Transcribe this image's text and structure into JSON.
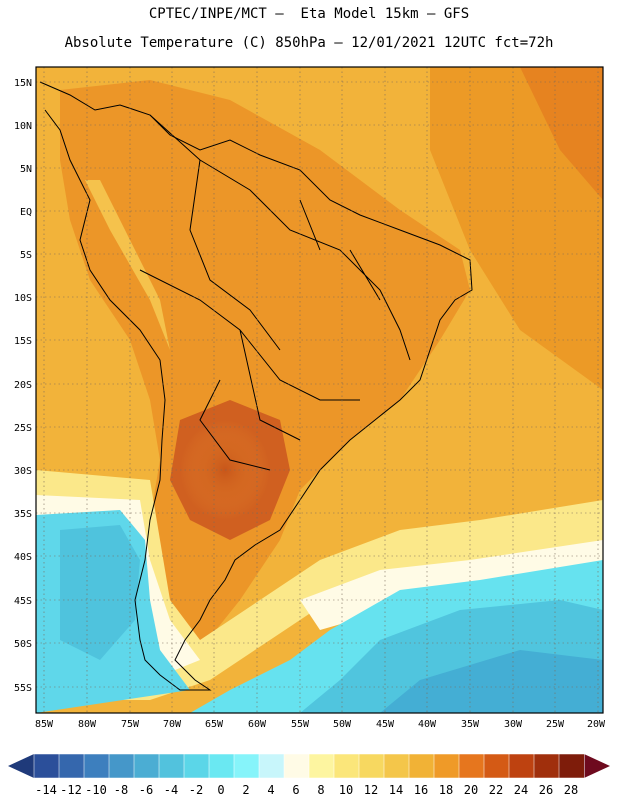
{
  "header": {
    "line1": "CPTEC/INPE/MCT –  Eta Model 15km – GFS",
    "line2": "Absolute Temperature (C) 850hPa – 12/01/2021 12UTC fct=72h"
  },
  "map": {
    "lat_labels": [
      "15N",
      "10N",
      "5N",
      "EQ",
      "5S",
      "10S",
      "15S",
      "20S",
      "25S",
      "30S",
      "35S",
      "40S",
      "45S",
      "50S",
      "55S"
    ],
    "lon_labels": [
      "85W",
      "80W",
      "75W",
      "70W",
      "65W",
      "60W",
      "55W",
      "50W",
      "45W",
      "40W",
      "35W",
      "30W",
      "25W",
      "20W"
    ]
  },
  "colorbar": {
    "labels": [
      "-14",
      "-12",
      "-10",
      "-8",
      "-6",
      "-4",
      "-2",
      "0",
      "2",
      "4",
      "6",
      "8",
      "10",
      "12",
      "14",
      "16",
      "18",
      "20",
      "22",
      "24",
      "26",
      "28"
    ],
    "colors": [
      "#2b4f9a",
      "#3567ad",
      "#3d7fbe",
      "#4597c9",
      "#4badd3",
      "#52c2dd",
      "#5bd6e8",
      "#6ae8f2",
      "#86f4fa",
      "#c8f6fb",
      "#fffbe6",
      "#fdf5a0",
      "#fbe67a",
      "#f7d860",
      "#f4c64a",
      "#f1b236",
      "#ef9a28",
      "#e6761e",
      "#d45a15",
      "#be4210",
      "#a02f0c",
      "#7e1c0a"
    ],
    "left_arrow_color": "#1f3a7a",
    "right_arrow_color": "#6e0a1e"
  }
}
